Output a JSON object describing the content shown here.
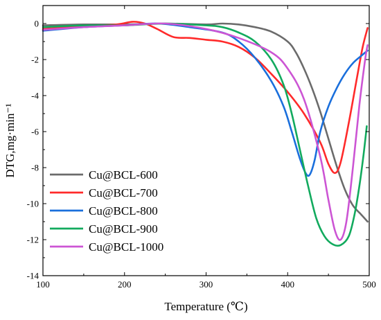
{
  "chart_data": {
    "type": "line",
    "title": "",
    "xlabel": "Temperature (℃)",
    "ylabel": "DTG,mg·min⁻¹",
    "xlim": [
      100,
      500
    ],
    "ylim": [
      -14,
      1
    ],
    "xticks": [
      100,
      200,
      300,
      400,
      500
    ],
    "yticks": [
      0,
      -2,
      -4,
      -6,
      -8,
      -10,
      -12,
      -14
    ],
    "grid": false,
    "legend_position": "bottom-left",
    "series": [
      {
        "name": "Cu@BCL-600",
        "color": "#6b6b6b",
        "x": [
          100,
          150,
          200,
          250,
          300,
          320,
          340,
          360,
          380,
          400,
          410,
          420,
          430,
          440,
          450,
          460,
          470,
          480,
          490,
          498
        ],
        "y": [
          -0.1,
          -0.05,
          -0.05,
          0.0,
          -0.05,
          0.0,
          -0.05,
          -0.2,
          -0.45,
          -1.0,
          -1.6,
          -2.5,
          -3.6,
          -4.9,
          -6.4,
          -7.9,
          -9.2,
          -10.1,
          -10.6,
          -11.0
        ]
      },
      {
        "name": "Cu@BCL-700",
        "color": "#ff2a2a",
        "x": [
          100,
          150,
          190,
          210,
          225,
          240,
          260,
          280,
          300,
          320,
          340,
          360,
          380,
          400,
          420,
          440,
          450,
          458,
          465,
          475,
          485,
          492,
          498
        ],
        "y": [
          -0.3,
          -0.15,
          -0.05,
          0.1,
          0.0,
          -0.3,
          -0.75,
          -0.8,
          -0.9,
          -1.0,
          -1.3,
          -1.9,
          -2.8,
          -3.8,
          -5.0,
          -6.6,
          -7.8,
          -8.3,
          -7.7,
          -5.5,
          -3.0,
          -1.3,
          -0.25
        ]
      },
      {
        "name": "Cu@BCL-800",
        "color": "#1a6fdc",
        "x": [
          100,
          150,
          200,
          240,
          280,
          320,
          340,
          360,
          380,
          395,
          405,
          415,
          422,
          427,
          433,
          440,
          450,
          460,
          470,
          480,
          490,
          498
        ],
        "y": [
          -0.4,
          -0.2,
          -0.1,
          0.0,
          -0.2,
          -0.5,
          -1.0,
          -1.9,
          -3.2,
          -4.6,
          -6.0,
          -7.5,
          -8.3,
          -8.4,
          -7.6,
          -6.0,
          -4.6,
          -3.6,
          -2.8,
          -2.2,
          -1.8,
          -1.5
        ]
      },
      {
        "name": "Cu@BCL-900",
        "color": "#12aa5e",
        "x": [
          100,
          150,
          200,
          250,
          300,
          320,
          340,
          360,
          380,
          395,
          405,
          415,
          425,
          435,
          445,
          455,
          465,
          475,
          482,
          488,
          493,
          497
        ],
        "y": [
          -0.2,
          -0.1,
          -0.1,
          0.0,
          -0.1,
          -0.2,
          -0.5,
          -1.0,
          -2.0,
          -3.4,
          -5.0,
          -7.0,
          -9.0,
          -10.8,
          -11.8,
          -12.25,
          -12.3,
          -11.8,
          -10.6,
          -9.0,
          -7.3,
          -5.7
        ]
      },
      {
        "name": "Cu@BCL-1000",
        "color": "#cc55d4",
        "x": [
          100,
          150,
          200,
          250,
          300,
          340,
          380,
          400,
          420,
          440,
          450,
          458,
          465,
          472,
          480,
          488,
          495,
          498
        ],
        "y": [
          -0.35,
          -0.2,
          -0.1,
          0.0,
          -0.3,
          -0.8,
          -1.6,
          -2.5,
          -4.2,
          -7.4,
          -9.8,
          -11.5,
          -12.0,
          -11.0,
          -8.0,
          -4.5,
          -2.0,
          -1.2
        ]
      }
    ]
  }
}
